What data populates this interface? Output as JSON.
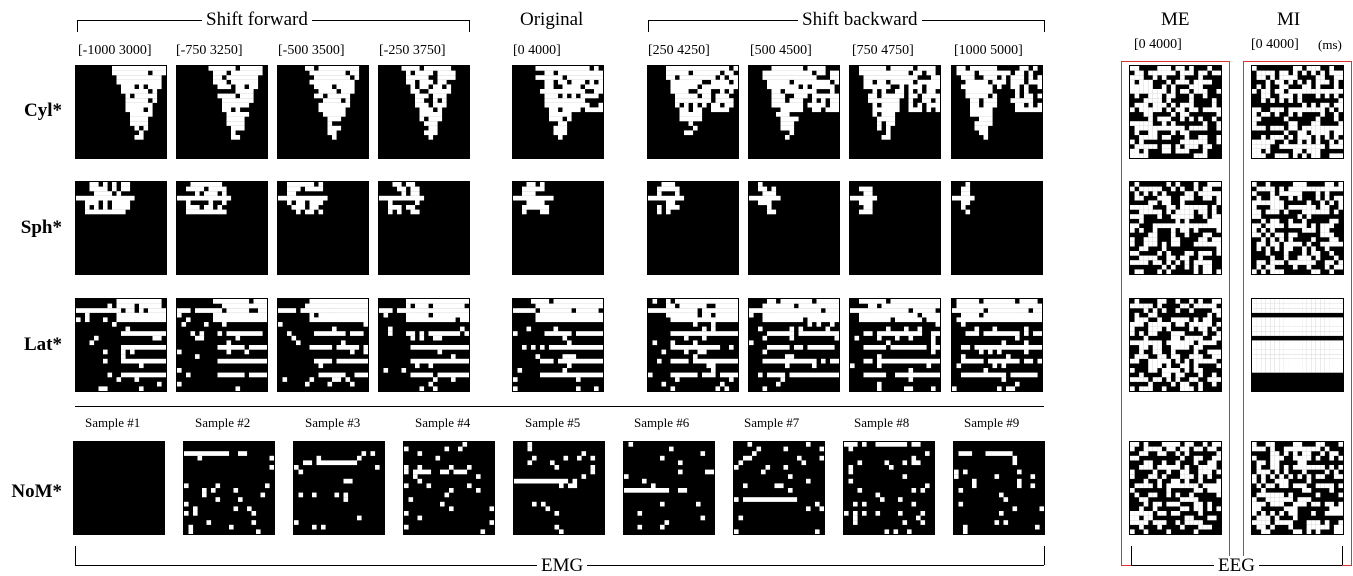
{
  "headers": {
    "shift_forward": "Shift forward",
    "original": "Original",
    "shift_backward": "Shift backward",
    "me": "ME",
    "mi": "MI"
  },
  "ranges": [
    "[-1000 3000]",
    "[-750  3250]",
    "[-500  3500]",
    "[-250  3750]",
    "[0       4000]",
    "[250   4250]",
    "[500   4500]",
    "[750   4750]",
    "[1000  5000]"
  ],
  "eeg_ranges": {
    "me": "[0       4000]",
    "mi": "[0  4000]",
    "unit": "(ms)"
  },
  "rows": [
    "Cyl*",
    "Sph*",
    "Lat*",
    "NoM*"
  ],
  "samples": [
    "Sample #1",
    "Sample #2",
    "Sample #3",
    "Sample #4",
    "Sample #5",
    "Sample #6",
    "Sample #7",
    "Sample #8",
    "Sample #9"
  ],
  "footer": {
    "emg": "EMG",
    "eeg": "EEG"
  }
}
